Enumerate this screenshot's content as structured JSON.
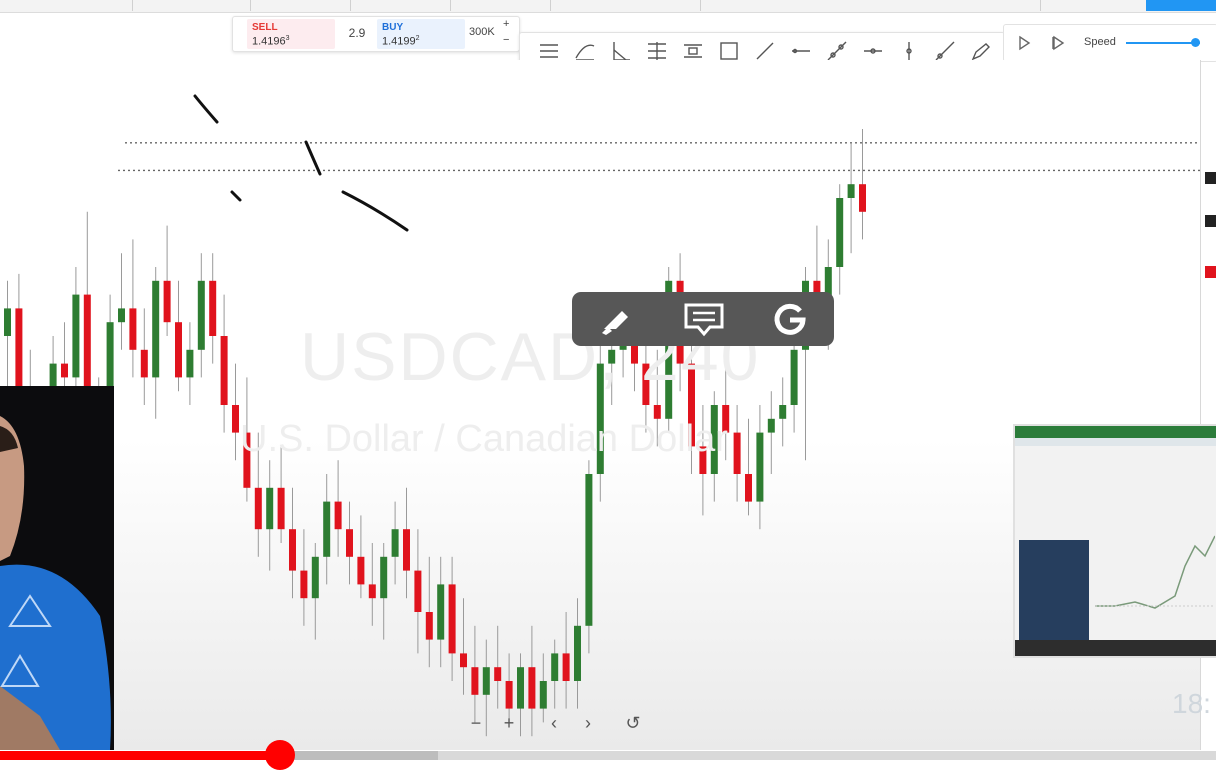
{
  "trade_panel": {
    "sell_label": "SELL",
    "sell_price": "1.4196",
    "sell_sup": "3",
    "spread": "2.9",
    "buy_label": "BUY",
    "buy_price": "1.4199",
    "buy_sup": "2",
    "quantity": "300K",
    "plus": "+",
    "minus": "−"
  },
  "drawing_tools": [
    "horizontal-lines-icon",
    "curve-lines-icon",
    "angle-icon",
    "fib-icon",
    "fib-channel-icon",
    "rectangle-icon",
    "trend-line-icon",
    "horizontal-ray-icon",
    "extended-line-icon",
    "cross-line-icon",
    "vertical-line-icon",
    "ray-icon",
    "brush-icon"
  ],
  "replay": {
    "speed_label": "Speed",
    "speed_level": 0.95
  },
  "chart": {
    "watermark_symbol": "USDCAD, 240",
    "watermark_desc": "U.S. Dollar / Canadian Dollar",
    "colors": {
      "up": "#2e7d32",
      "down": "#e0131d"
    }
  },
  "chart_data": {
    "type": "candlestick",
    "symbol": "USDCAD",
    "timeframe": "240",
    "candles": [
      {
        "o": 1.415,
        "h": 1.419,
        "l": 1.408,
        "c": 1.417
      },
      {
        "o": 1.417,
        "h": 1.4195,
        "l": 1.41,
        "c": 1.411
      },
      {
        "o": 1.411,
        "h": 1.414,
        "l": 1.403,
        "c": 1.404
      },
      {
        "o": 1.404,
        "h": 1.411,
        "l": 1.402,
        "c": 1.41
      },
      {
        "o": 1.41,
        "h": 1.415,
        "l": 1.407,
        "c": 1.413
      },
      {
        "o": 1.413,
        "h": 1.416,
        "l": 1.411,
        "c": 1.412
      },
      {
        "o": 1.412,
        "h": 1.42,
        "l": 1.409,
        "c": 1.418
      },
      {
        "o": 1.418,
        "h": 1.424,
        "l": 1.406,
        "c": 1.407
      },
      {
        "o": 1.407,
        "h": 1.412,
        "l": 1.405,
        "c": 1.409
      },
      {
        "o": 1.409,
        "h": 1.418,
        "l": 1.408,
        "c": 1.416
      },
      {
        "o": 1.416,
        "h": 1.421,
        "l": 1.414,
        "c": 1.417
      },
      {
        "o": 1.417,
        "h": 1.422,
        "l": 1.412,
        "c": 1.414
      },
      {
        "o": 1.414,
        "h": 1.417,
        "l": 1.41,
        "c": 1.412
      },
      {
        "o": 1.412,
        "h": 1.42,
        "l": 1.409,
        "c": 1.419
      },
      {
        "o": 1.419,
        "h": 1.423,
        "l": 1.415,
        "c": 1.416
      },
      {
        "o": 1.416,
        "h": 1.419,
        "l": 1.411,
        "c": 1.412
      },
      {
        "o": 1.412,
        "h": 1.416,
        "l": 1.41,
        "c": 1.414
      },
      {
        "o": 1.414,
        "h": 1.421,
        "l": 1.412,
        "c": 1.419
      },
      {
        "o": 1.419,
        "h": 1.421,
        "l": 1.413,
        "c": 1.415
      },
      {
        "o": 1.415,
        "h": 1.418,
        "l": 1.408,
        "c": 1.41
      },
      {
        "o": 1.41,
        "h": 1.413,
        "l": 1.406,
        "c": 1.408
      },
      {
        "o": 1.408,
        "h": 1.412,
        "l": 1.403,
        "c": 1.404
      },
      {
        "o": 1.404,
        "h": 1.408,
        "l": 1.399,
        "c": 1.401
      },
      {
        "o": 1.401,
        "h": 1.406,
        "l": 1.398,
        "c": 1.404
      },
      {
        "o": 1.404,
        "h": 1.407,
        "l": 1.4,
        "c": 1.401
      },
      {
        "o": 1.401,
        "h": 1.404,
        "l": 1.396,
        "c": 1.398
      },
      {
        "o": 1.398,
        "h": 1.401,
        "l": 1.394,
        "c": 1.396
      },
      {
        "o": 1.396,
        "h": 1.4,
        "l": 1.393,
        "c": 1.399
      },
      {
        "o": 1.399,
        "h": 1.405,
        "l": 1.397,
        "c": 1.403
      },
      {
        "o": 1.403,
        "h": 1.406,
        "l": 1.399,
        "c": 1.401
      },
      {
        "o": 1.401,
        "h": 1.403,
        "l": 1.397,
        "c": 1.399
      },
      {
        "o": 1.399,
        "h": 1.402,
        "l": 1.396,
        "c": 1.397
      },
      {
        "o": 1.397,
        "h": 1.4,
        "l": 1.394,
        "c": 1.396
      },
      {
        "o": 1.396,
        "h": 1.4,
        "l": 1.393,
        "c": 1.399
      },
      {
        "o": 1.399,
        "h": 1.403,
        "l": 1.397,
        "c": 1.401
      },
      {
        "o": 1.401,
        "h": 1.404,
        "l": 1.396,
        "c": 1.398
      },
      {
        "o": 1.398,
        "h": 1.401,
        "l": 1.392,
        "c": 1.395
      },
      {
        "o": 1.395,
        "h": 1.399,
        "l": 1.391,
        "c": 1.393
      },
      {
        "o": 1.393,
        "h": 1.399,
        "l": 1.391,
        "c": 1.397
      },
      {
        "o": 1.397,
        "h": 1.399,
        "l": 1.39,
        "c": 1.392
      },
      {
        "o": 1.392,
        "h": 1.396,
        "l": 1.389,
        "c": 1.391
      },
      {
        "o": 1.391,
        "h": 1.394,
        "l": 1.387,
        "c": 1.389
      },
      {
        "o": 1.389,
        "h": 1.393,
        "l": 1.386,
        "c": 1.391
      },
      {
        "o": 1.391,
        "h": 1.394,
        "l": 1.388,
        "c": 1.39
      },
      {
        "o": 1.39,
        "h": 1.392,
        "l": 1.387,
        "c": 1.388
      },
      {
        "o": 1.388,
        "h": 1.392,
        "l": 1.386,
        "c": 1.391
      },
      {
        "o": 1.391,
        "h": 1.394,
        "l": 1.386,
        "c": 1.388
      },
      {
        "o": 1.388,
        "h": 1.392,
        "l": 1.387,
        "c": 1.39
      },
      {
        "o": 1.39,
        "h": 1.393,
        "l": 1.388,
        "c": 1.392
      },
      {
        "o": 1.392,
        "h": 1.395,
        "l": 1.388,
        "c": 1.39
      },
      {
        "o": 1.39,
        "h": 1.396,
        "l": 1.388,
        "c": 1.394
      },
      {
        "o": 1.394,
        "h": 1.406,
        "l": 1.392,
        "c": 1.405
      },
      {
        "o": 1.405,
        "h": 1.416,
        "l": 1.403,
        "c": 1.413
      },
      {
        "o": 1.413,
        "h": 1.416,
        "l": 1.41,
        "c": 1.414
      },
      {
        "o": 1.414,
        "h": 1.417,
        "l": 1.412,
        "c": 1.415
      },
      {
        "o": 1.415,
        "h": 1.418,
        "l": 1.411,
        "c": 1.413
      },
      {
        "o": 1.413,
        "h": 1.415,
        "l": 1.408,
        "c": 1.41
      },
      {
        "o": 1.41,
        "h": 1.414,
        "l": 1.407,
        "c": 1.409
      },
      {
        "o": 1.409,
        "h": 1.42,
        "l": 1.408,
        "c": 1.419
      },
      {
        "o": 1.419,
        "h": 1.421,
        "l": 1.411,
        "c": 1.413
      },
      {
        "o": 1.413,
        "h": 1.416,
        "l": 1.405,
        "c": 1.407
      },
      {
        "o": 1.407,
        "h": 1.41,
        "l": 1.402,
        "c": 1.405
      },
      {
        "o": 1.405,
        "h": 1.411,
        "l": 1.403,
        "c": 1.41
      },
      {
        "o": 1.41,
        "h": 1.413,
        "l": 1.406,
        "c": 1.408
      },
      {
        "o": 1.408,
        "h": 1.41,
        "l": 1.403,
        "c": 1.405
      },
      {
        "o": 1.405,
        "h": 1.409,
        "l": 1.402,
        "c": 1.403
      },
      {
        "o": 1.403,
        "h": 1.41,
        "l": 1.401,
        "c": 1.408
      },
      {
        "o": 1.408,
        "h": 1.411,
        "l": 1.405,
        "c": 1.409
      },
      {
        "o": 1.409,
        "h": 1.412,
        "l": 1.407,
        "c": 1.41
      },
      {
        "o": 1.41,
        "h": 1.416,
        "l": 1.408,
        "c": 1.414
      },
      {
        "o": 1.414,
        "h": 1.42,
        "l": 1.406,
        "c": 1.419
      },
      {
        "o": 1.419,
        "h": 1.423,
        "l": 1.415,
        "c": 1.417
      },
      {
        "o": 1.417,
        "h": 1.422,
        "l": 1.414,
        "c": 1.42
      },
      {
        "o": 1.42,
        "h": 1.426,
        "l": 1.418,
        "c": 1.425
      },
      {
        "o": 1.425,
        "h": 1.429,
        "l": 1.421,
        "c": 1.426
      },
      {
        "o": 1.426,
        "h": 1.43,
        "l": 1.422,
        "c": 1.424
      }
    ],
    "levels": [
      1.429,
      1.427
    ],
    "ylim": [
      1.385,
      1.435
    ]
  },
  "video": {
    "time_display": "18:",
    "progress": 0.23,
    "buffered": 0.36
  },
  "nav": {
    "zoom_out": "−",
    "zoom_in": "+",
    "back": "‹",
    "forward": "›",
    "reset": "↺"
  }
}
